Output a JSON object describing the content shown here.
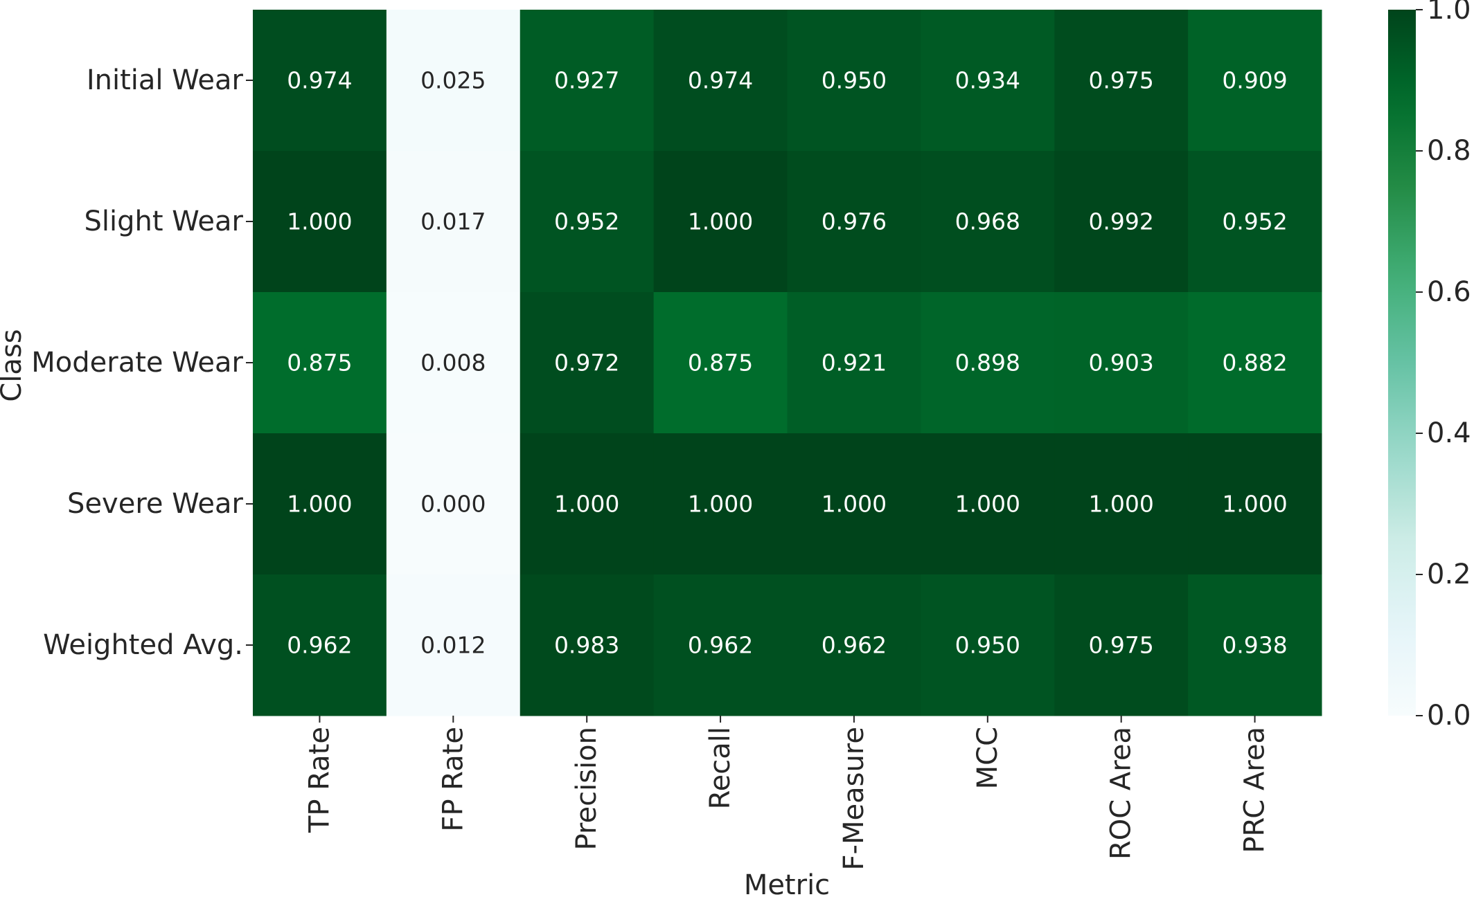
{
  "chart_data": {
    "type": "heatmap",
    "title": "",
    "xlabel": "Metric",
    "ylabel": "Class",
    "x_categories": [
      "TP Rate",
      "FP Rate",
      "Precision",
      "Recall",
      "F-Measure",
      "MCC",
      "ROC Area",
      "PRC Area"
    ],
    "y_categories": [
      "Initial Wear",
      "Slight Wear",
      "Moderate Wear",
      "Severe Wear",
      "Weighted Avg."
    ],
    "values": [
      [
        "0.974",
        "0.025",
        "0.927",
        "0.974",
        "0.950",
        "0.934",
        "0.975",
        "0.909"
      ],
      [
        "1.000",
        "0.017",
        "0.952",
        "1.000",
        "0.976",
        "0.968",
        "0.992",
        "0.952"
      ],
      [
        "0.875",
        "0.008",
        "0.972",
        "0.875",
        "0.921",
        "0.898",
        "0.903",
        "0.882"
      ],
      [
        "1.000",
        "0.000",
        "1.000",
        "1.000",
        "1.000",
        "1.000",
        "1.000",
        "1.000"
      ],
      [
        "0.962",
        "0.012",
        "0.983",
        "0.962",
        "0.962",
        "0.950",
        "0.975",
        "0.938"
      ]
    ],
    "vmin": 0,
    "vmax": 1,
    "colormap": "BuGn",
    "colorbar_ticks": [
      "0.0",
      "0.2",
      "0.4",
      "0.6",
      "0.8",
      "1.0"
    ],
    "grid": false
  }
}
